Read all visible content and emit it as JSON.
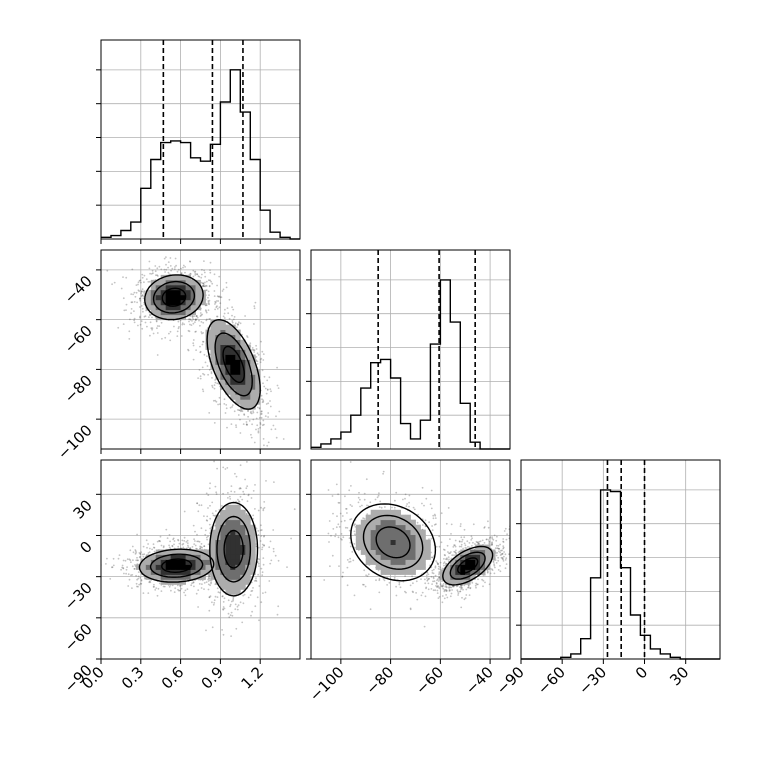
{
  "chart_data": {
    "type": "corner",
    "grid": true,
    "parameters": [
      {
        "range": [
          0,
          1.5
        ],
        "ticks": [
          "0.0",
          "0.3",
          "0.6",
          "0.9",
          "1.2"
        ],
        "tick_values": [
          0,
          0.3,
          0.6,
          0.9,
          1.2
        ],
        "quantiles": [
          0.47,
          0.84,
          1.07
        ]
      },
      {
        "range": [
          -112,
          -32
        ],
        "ticks": [
          "-100",
          "-80",
          "-60",
          "-40"
        ],
        "tick_values": [
          -100,
          -80,
          -60,
          -40
        ],
        "quantiles": [
          -85.0,
          -60.5,
          -46.0
        ]
      },
      {
        "range": [
          -90,
          55
        ],
        "ticks": [
          "-90",
          "-60",
          "-30",
          "0",
          "30"
        ],
        "tick_values": [
          -90,
          -60,
          -30,
          0,
          30
        ],
        "quantiles": [
          -27.0,
          -17.0,
          0.0
        ]
      }
    ],
    "y_ticks_2d": {
      "row1": {
        "ticks": [
          "-40",
          "-60",
          "-80",
          "-100"
        ],
        "tick_values": [
          -40,
          -60,
          -80,
          -100
        ]
      },
      "row2": {
        "ticks": [
          "30",
          "0",
          "-30",
          "-60",
          "-90"
        ],
        "tick_values": [
          30,
          0,
          -30,
          -60,
          -90
        ]
      }
    },
    "histograms": [
      {
        "parameter": 0,
        "bin_edges_start": 0.0,
        "bin_width": 0.075,
        "counts": [
          1,
          2,
          5,
          10,
          30,
          47,
          57,
          58,
          57,
          48,
          46,
          56,
          81,
          100,
          75,
          47,
          17,
          4,
          1,
          0
        ]
      },
      {
        "parameter": 1,
        "bin_edges_start": -112,
        "bin_width": 4,
        "counts": [
          1,
          3,
          6,
          10,
          20,
          36,
          51,
          53,
          42,
          15,
          6,
          17,
          62,
          100,
          75,
          27,
          4,
          0,
          0,
          0
        ]
      },
      {
        "parameter": 2,
        "bin_edges_start": -90,
        "bin_width": 7.25,
        "counts": [
          0,
          0,
          0,
          0,
          1,
          3,
          12,
          48,
          100,
          99,
          54,
          26,
          14,
          6,
          3,
          1,
          0,
          0,
          0,
          0
        ]
      }
    ],
    "density_2d": [
      {
        "x": 0,
        "y": 1,
        "modes": [
          {
            "center": [
              0.55,
              -51
            ],
            "sd": [
              0.11,
              4.5
            ],
            "rho": 0.1,
            "weight": 1.0
          },
          {
            "center": [
              1.0,
              -78
            ],
            "sd": [
              0.1,
              9
            ],
            "rho": -0.55,
            "weight": 0.9
          }
        ]
      },
      {
        "x": 0,
        "y": 2,
        "modes": [
          {
            "center": [
              0.57,
              -22
            ],
            "sd": [
              0.14,
              6
            ],
            "rho": 0.1,
            "weight": 1.0
          },
          {
            "center": [
              1.0,
              -10
            ],
            "sd": [
              0.09,
              17
            ],
            "rho": 0.0,
            "weight": 0.75
          }
        ]
      },
      {
        "x": 1,
        "y": 2,
        "modes": [
          {
            "center": [
              -79,
              -5
            ],
            "sd": [
              8.5,
              14
            ],
            "rho": -0.2,
            "weight": 0.55
          },
          {
            "center": [
              -49,
              -22
            ],
            "sd": [
              5,
              7
            ],
            "rho": 0.55,
            "weight": 1.0
          }
        ]
      }
    ]
  }
}
